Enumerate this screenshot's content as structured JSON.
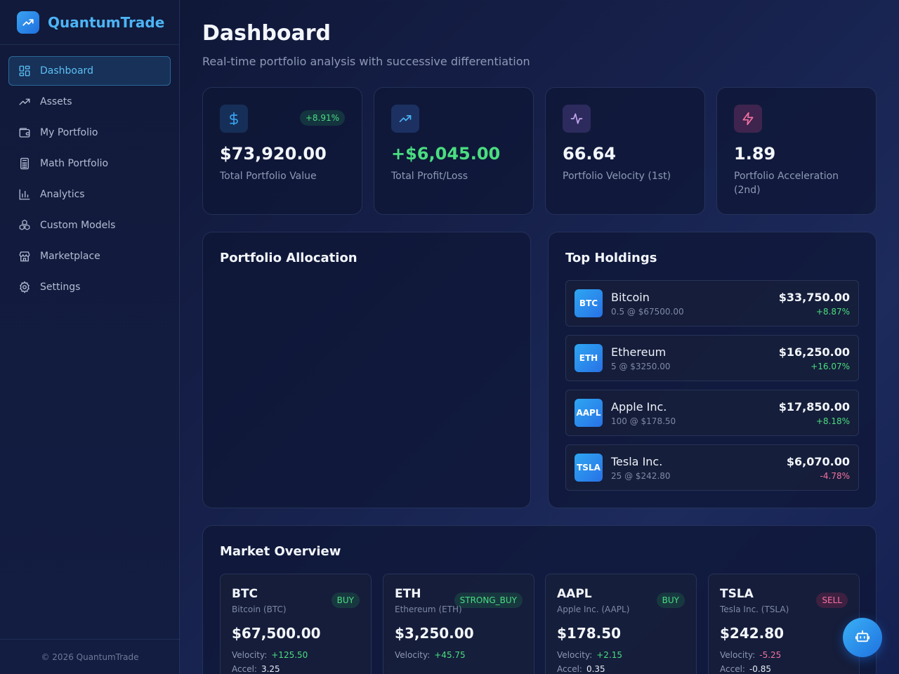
{
  "app": {
    "name": "QuantumTrade",
    "footer": "© 2026 QuantumTrade"
  },
  "sidebar": {
    "items": [
      {
        "label": "Dashboard",
        "icon": "dashboard-icon"
      },
      {
        "label": "Assets",
        "icon": "trending-up-icon"
      },
      {
        "label": "My Portfolio",
        "icon": "wallet-icon"
      },
      {
        "label": "Math Portfolio",
        "icon": "calculator-icon"
      },
      {
        "label": "Analytics",
        "icon": "bar-chart-icon"
      },
      {
        "label": "Custom Models",
        "icon": "boxes-icon"
      },
      {
        "label": "Marketplace",
        "icon": "store-icon"
      },
      {
        "label": "Settings",
        "icon": "gear-icon"
      }
    ]
  },
  "page": {
    "title": "Dashboard",
    "subtitle": "Real-time portfolio analysis with successive differentiation"
  },
  "stats": [
    {
      "value": "$73,920.00",
      "label": "Total Portfolio Value",
      "badge": "+8.91%",
      "icon": "dollar-icon",
      "color": "#3aa3f0"
    },
    {
      "value": "+$6,045.00",
      "label": "Total Profit/Loss",
      "icon": "trending-up-icon",
      "color": "#4cb4f5"
    },
    {
      "value": "66.64",
      "label": "Portfolio Velocity (1st)",
      "icon": "activity-icon",
      "color": "#b08ae8"
    },
    {
      "value": "1.89",
      "label": "Portfolio Acceleration (2nd)",
      "icon": "zap-icon",
      "color": "#f472a0"
    }
  ],
  "allocation": {
    "title": "Portfolio Allocation"
  },
  "holdings": {
    "title": "Top Holdings",
    "items": [
      {
        "symbol": "BTC",
        "name": "Bitcoin",
        "qty": "0.5 @ $67500.00",
        "value": "$33,750.00",
        "change": "+8.87%",
        "dir": "up"
      },
      {
        "symbol": "ETH",
        "name": "Ethereum",
        "qty": "5 @ $3250.00",
        "value": "$16,250.00",
        "change": "+16.07%",
        "dir": "up"
      },
      {
        "symbol": "AAPL",
        "name": "Apple Inc.",
        "qty": "100 @ $178.50",
        "value": "$17,850.00",
        "change": "+8.18%",
        "dir": "up"
      },
      {
        "symbol": "TSLA",
        "name": "Tesla Inc.",
        "qty": "25 @ $242.80",
        "value": "$6,070.00",
        "change": "-4.78%",
        "dir": "down"
      }
    ]
  },
  "market": {
    "title": "Market Overview",
    "velocity_label": "Velocity:",
    "accel_label": "Accel:",
    "items": [
      {
        "symbol": "BTC",
        "name": "Bitcoin (BTC)",
        "signal": "BUY",
        "price": "$67,500.00",
        "velocity": "+125.50",
        "velocity_dir": "up",
        "accel": "3.25"
      },
      {
        "symbol": "ETH",
        "name": "Ethereum (ETH)",
        "signal": "STRONG_BUY",
        "price": "$3,250.00",
        "velocity": "+45.75",
        "velocity_dir": "up",
        "accel": ""
      },
      {
        "symbol": "AAPL",
        "name": "Apple Inc. (AAPL)",
        "signal": "BUY",
        "price": "$178.50",
        "velocity": "+2.15",
        "velocity_dir": "up",
        "accel": "0.35"
      },
      {
        "symbol": "TSLA",
        "name": "Tesla Inc. (TSLA)",
        "signal": "SELL",
        "price": "$242.80",
        "velocity": "-5.25",
        "velocity_dir": "down",
        "accel": "-0.85"
      }
    ]
  },
  "assistant": {
    "icon": "bot-icon"
  }
}
